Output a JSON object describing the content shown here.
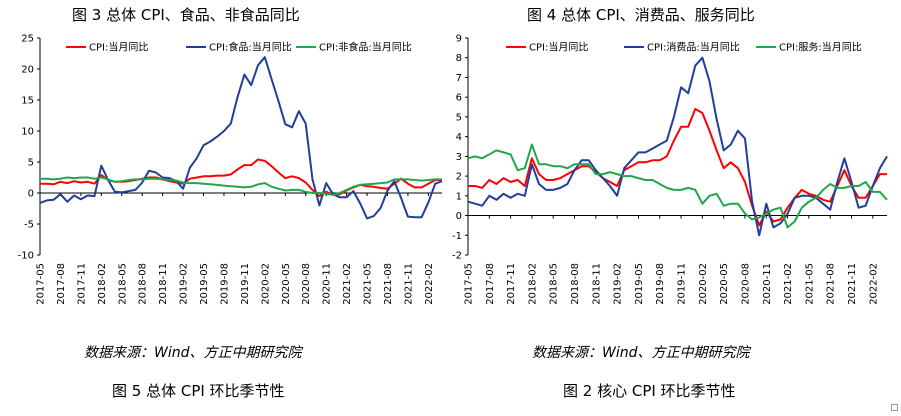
{
  "figures": {
    "left_title": "图 3 总体 CPI、食品、非食品同比",
    "right_title": "图 4 总体 CPI、消费品、服务同比",
    "left_source": "数据来源：Wind、方正中期研究院",
    "right_source": "数据来源：Wind、方正中期研究院",
    "left_caption": "图 5 总体 CPI 环比季节性",
    "right_caption": "图 2 核心 CPI 环比季节性"
  },
  "chart_data": [
    {
      "type": "line",
      "title": "图 3 总体 CPI、食品、非食品同比",
      "xlabel": "",
      "ylabel": "",
      "ylim": [
        -10,
        25
      ],
      "yticks": [
        -10,
        -5,
        0,
        5,
        10,
        15,
        20,
        25
      ],
      "x_tick_labels": [
        "2017-05",
        "2017-08",
        "2017-11",
        "2018-02",
        "2018-05",
        "2018-08",
        "2018-11",
        "2019-02",
        "2019-05",
        "2019-08",
        "2019-11",
        "2020-02",
        "2020-05",
        "2020-08",
        "2020-11",
        "2021-02",
        "2021-05",
        "2021-08",
        "2021-11",
        "2022-02"
      ],
      "x_start": "2017-05",
      "x_end": "2022-04",
      "grid": false,
      "legend_position": "top",
      "series": [
        {
          "name": "CPI:当月同比",
          "color": "#ff0000",
          "values": [
            1.5,
            1.5,
            1.4,
            1.8,
            1.6,
            1.9,
            1.7,
            1.8,
            1.5,
            2.9,
            2.1,
            1.8,
            1.8,
            1.9,
            2.1,
            2.3,
            2.5,
            2.5,
            2.2,
            1.9,
            1.7,
            1.5,
            2.3,
            2.5,
            2.7,
            2.7,
            2.8,
            2.8,
            3.0,
            3.8,
            4.5,
            4.5,
            5.4,
            5.2,
            4.3,
            3.3,
            2.4,
            2.7,
            2.4,
            1.7,
            0.5,
            -0.5,
            0.2,
            -0.3,
            -0.2,
            0.4,
            0.9,
            1.3,
            1.1,
            1.0,
            0.8,
            0.7,
            1.5,
            2.3,
            1.5,
            0.9,
            0.9,
            1.5,
            2.1,
            2.1
          ]
        },
        {
          "name": "CPI:食品:当月同比",
          "color": "#1f3f99",
          "values": [
            -1.6,
            -1.2,
            -1.1,
            -0.2,
            -1.4,
            -0.4,
            -1.0,
            -0.4,
            -0.5,
            4.4,
            2.1,
            0.2,
            0.1,
            0.3,
            0.5,
            1.7,
            3.6,
            3.3,
            2.5,
            2.4,
            1.9,
            0.7,
            4.1,
            5.6,
            7.7,
            8.3,
            9.1,
            10.0,
            11.2,
            15.5,
            19.1,
            17.4,
            20.6,
            21.9,
            18.3,
            14.8,
            11.1,
            10.6,
            13.2,
            11.2,
            2.2,
            -2.0,
            1.6,
            -0.2,
            -0.7,
            -0.7,
            0.3,
            -1.7,
            -4.1,
            -3.7,
            -2.4,
            0.4,
            1.9,
            -0.8,
            -3.8,
            -3.9,
            -3.9,
            -1.5,
            1.5,
            1.9
          ]
        },
        {
          "name": "CPI:非食品:当月同比",
          "color": "#1fa84a",
          "values": [
            2.3,
            2.3,
            2.2,
            2.3,
            2.5,
            2.4,
            2.5,
            2.5,
            2.3,
            2.5,
            2.2,
            1.8,
            1.9,
            2.1,
            2.2,
            2.2,
            2.3,
            2.3,
            2.2,
            2.1,
            2.0,
            1.7,
            1.6,
            1.6,
            1.5,
            1.4,
            1.3,
            1.2,
            1.1,
            1.0,
            0.9,
            1.0,
            1.4,
            1.6,
            1.0,
            0.7,
            0.4,
            0.5,
            0.5,
            0.2,
            0.0,
            0.0,
            -0.1,
            -0.3,
            0.0,
            0.5,
            1.0,
            1.3,
            1.4,
            1.5,
            1.6,
            1.7,
            2.2,
            2.2,
            2.2,
            2.1,
            2.0,
            2.1,
            2.2,
            2.2
          ]
        }
      ]
    },
    {
      "type": "line",
      "title": "图 4 总体 CPI、消费品、服务同比",
      "xlabel": "",
      "ylabel": "",
      "ylim": [
        -2,
        9
      ],
      "yticks": [
        -2,
        -1,
        0,
        1,
        2,
        3,
        4,
        5,
        6,
        7,
        8,
        9
      ],
      "x_tick_labels": [
        "2017-05",
        "2017-08",
        "2017-11",
        "2018-02",
        "2018-05",
        "2018-08",
        "2018-11",
        "2019-02",
        "2019-05",
        "2019-08",
        "2019-11",
        "2020-02",
        "2020-05",
        "2020-08",
        "2020-11",
        "2021-02",
        "2021-05",
        "2021-08",
        "2021-11",
        "2022-02"
      ],
      "x_start": "2017-05",
      "x_end": "2022-04",
      "grid": false,
      "legend_position": "top",
      "series": [
        {
          "name": "CPI:当月同比",
          "color": "#ff0000",
          "values": [
            1.5,
            1.5,
            1.4,
            1.8,
            1.6,
            1.9,
            1.7,
            1.8,
            1.5,
            2.9,
            2.1,
            1.8,
            1.8,
            1.9,
            2.1,
            2.3,
            2.5,
            2.5,
            2.2,
            1.9,
            1.7,
            1.5,
            2.3,
            2.5,
            2.7,
            2.7,
            2.8,
            2.8,
            3.0,
            3.8,
            4.5,
            4.5,
            5.4,
            5.2,
            4.3,
            3.3,
            2.4,
            2.7,
            2.4,
            1.7,
            0.5,
            -0.5,
            0.2,
            -0.3,
            -0.2,
            0.4,
            0.9,
            1.3,
            1.1,
            1.0,
            0.8,
            0.7,
            1.5,
            2.3,
            1.5,
            0.9,
            0.9,
            1.5,
            2.1,
            2.1
          ]
        },
        {
          "name": "CPI:消费品:当月同比",
          "color": "#1f3f99",
          "values": [
            0.7,
            0.6,
            0.5,
            1.0,
            0.8,
            1.1,
            0.9,
            1.1,
            1.0,
            2.6,
            1.6,
            1.3,
            1.3,
            1.4,
            1.6,
            2.3,
            2.8,
            2.8,
            2.3,
            1.9,
            1.5,
            1.0,
            2.4,
            2.8,
            3.2,
            3.2,
            3.4,
            3.6,
            3.8,
            5.0,
            6.5,
            6.2,
            7.6,
            8.0,
            6.8,
            4.9,
            3.3,
            3.6,
            4.3,
            3.9,
            0.7,
            -1.0,
            0.6,
            -0.6,
            -0.4,
            0.1,
            0.9,
            1.0,
            1.0,
            0.9,
            0.6,
            0.3,
            1.7,
            2.9,
            1.7,
            0.4,
            0.5,
            1.5,
            2.4,
            3.0
          ]
        },
        {
          "name": "CPI:服务:当月同比",
          "color": "#1fa84a",
          "values": [
            2.9,
            3.0,
            2.9,
            3.1,
            3.3,
            3.2,
            3.1,
            2.3,
            2.4,
            3.6,
            2.6,
            2.6,
            2.5,
            2.5,
            2.4,
            2.6,
            2.6,
            2.6,
            2.1,
            2.1,
            2.2,
            2.1,
            2.0,
            2.0,
            1.9,
            1.8,
            1.8,
            1.6,
            1.4,
            1.3,
            1.3,
            1.4,
            1.3,
            0.6,
            1.0,
            1.1,
            0.5,
            0.6,
            0.6,
            0.1,
            -0.2,
            -0.1,
            0.1,
            0.3,
            0.4,
            -0.6,
            -0.3,
            0.4,
            0.7,
            0.9,
            1.3,
            1.6,
            1.4,
            1.4,
            1.5,
            1.5,
            1.7,
            1.2,
            1.2,
            0.8
          ]
        }
      ]
    }
  ]
}
